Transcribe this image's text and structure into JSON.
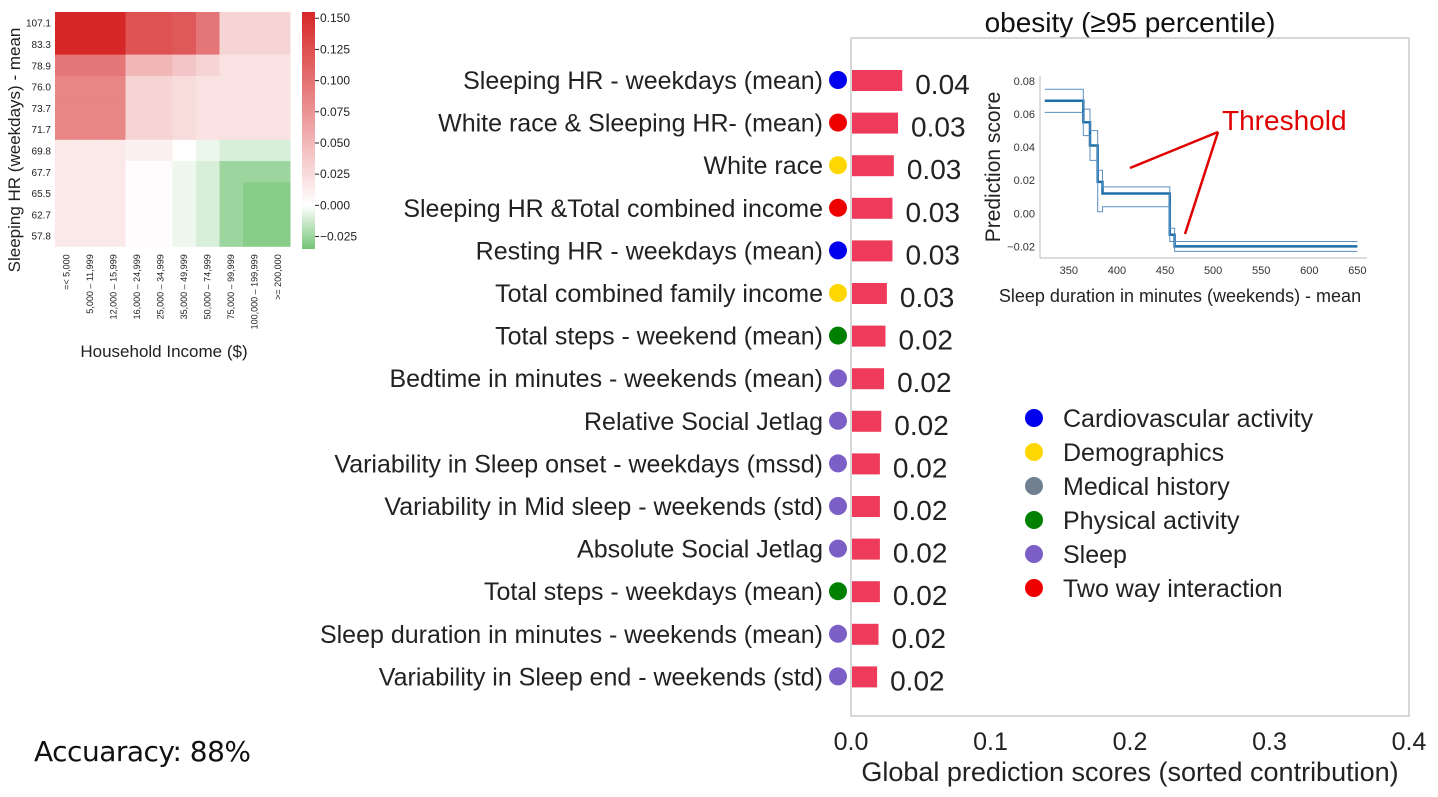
{
  "title": "obesity (≥95 percentile)",
  "accuracy_text": "Accuaracy: 88%",
  "colors": {
    "bar": "#ee3b5b",
    "Cardiovascular activity": "#0000ee",
    "Demographics": "#ffd700",
    "Medical history": "#708090",
    "Physical activity": "#008000",
    "Sleep": "#7b5ec6",
    "Two way interaction": "#ee0000"
  },
  "chart_data": [
    {
      "id": "main-bar",
      "type": "bar",
      "orientation": "horizontal",
      "xlabel": "Global prediction scores (sorted contribution)",
      "xlim": [
        0.0,
        0.4
      ],
      "xticks": [
        "0.0",
        "0.1",
        "0.2",
        "0.3",
        "0.4"
      ],
      "grid": false,
      "categories": [
        "Sleeping HR - weekdays (mean)",
        "White race  & Sleeping  HR- (mean)",
        "White race",
        "Sleeping HR &Total combined income",
        "Resting HR - weekdays (mean)",
        "Total combined family income",
        "Total steps - weekend (mean)",
        "Bedtime in minutes - weekends (mean)",
        "Relative Social Jetlag",
        "Variability in Sleep onset - weekdays (mssd)",
        "Variability in Mid sleep - weekends (std)",
        "Absolute Social Jetlag",
        "Total steps - weekdays (mean)",
        "Sleep duration in minutes - weekends (mean)",
        "Variability in Sleep end - weekends (std)"
      ],
      "values": [
        0.036,
        0.033,
        0.03,
        0.029,
        0.029,
        0.025,
        0.024,
        0.023,
        0.021,
        0.02,
        0.02,
        0.02,
        0.02,
        0.019,
        0.018
      ],
      "value_labels": [
        "0.04",
        "0.03",
        "0.03",
        "0.03",
        "0.03",
        "0.03",
        "0.02",
        "0.02",
        "0.02",
        "0.02",
        "0.02",
        "0.02",
        "0.02",
        "0.02",
        "0.02"
      ],
      "groups": [
        "Cardiovascular activity",
        "Two way interaction",
        "Demographics",
        "Two way interaction",
        "Cardiovascular activity",
        "Demographics",
        "Physical activity",
        "Sleep",
        "Sleep",
        "Sleep",
        "Sleep",
        "Sleep",
        "Physical activity",
        "Sleep",
        "Sleep"
      ],
      "legend": {
        "placement": "right",
        "entries": [
          "Cardiovascular activity",
          "Demographics",
          "Medical history",
          "Physical activity",
          "Sleep",
          "Two way interaction"
        ]
      }
    },
    {
      "id": "inset-step",
      "type": "line",
      "xlabel": "Sleep duration in minutes (weekends) - mean",
      "ylabel": "Prediction score",
      "xlim": [
        320,
        660
      ],
      "ylim": [
        -0.027,
        0.083
      ],
      "xticks": [
        "350",
        "400",
        "450",
        "500",
        "550",
        "600",
        "650"
      ],
      "yticks": [
        "0.08",
        "0.06",
        "0.04",
        "0.02",
        "0.00",
        "−0.02"
      ],
      "annotation": "Threshold",
      "series": [
        {
          "role": "mean",
          "x": [
            325,
            365,
            365,
            372,
            372,
            380,
            380,
            385,
            385,
            455,
            455,
            460,
            460,
            650
          ],
          "y": [
            0.068,
            0.068,
            0.055,
            0.055,
            0.041,
            0.041,
            0.019,
            0.019,
            0.012,
            0.012,
            -0.013,
            -0.013,
            -0.02,
            -0.02
          ]
        },
        {
          "role": "upper",
          "x": [
            325,
            365,
            365,
            372,
            372,
            380,
            380,
            385,
            385,
            455,
            455,
            460,
            460,
            650
          ],
          "y": [
            0.075,
            0.075,
            0.063,
            0.063,
            0.05,
            0.05,
            0.026,
            0.026,
            0.016,
            0.016,
            -0.009,
            -0.009,
            -0.017,
            -0.017
          ]
        },
        {
          "role": "lower",
          "x": [
            325,
            365,
            365,
            372,
            372,
            380,
            380,
            385,
            385,
            455,
            455,
            460,
            460,
            650
          ],
          "y": [
            0.061,
            0.061,
            0.047,
            0.047,
            0.032,
            0.032,
            0.001,
            0.001,
            0.004,
            0.004,
            -0.017,
            -0.017,
            -0.023,
            -0.023
          ]
        }
      ]
    },
    {
      "id": "heatmap",
      "type": "heatmap",
      "xlabel": "Household Income ($)",
      "ylabel": "Sleeping HR (weekdays) - mean",
      "x_categories": [
        "=< 5,000",
        "5,000 – 11,999",
        "12,000 – 15,999",
        "16,000 – 24,999",
        "25,000 – 34,999",
        "35,000 – 49,999",
        "50,000 – 74,999",
        "75,000 – 99,999",
        "100,000 – 199,999",
        ">= 200,000"
      ],
      "y_categories": [
        "107.1",
        "83.3",
        "78.9",
        "76.0",
        "73.7",
        "71.7",
        "69.8",
        "67.7",
        "65.5",
        "62.7",
        "57.8"
      ],
      "colorbar": {
        "ticks": [
          "0.150",
          "0.125",
          "0.100",
          "0.075",
          "0.050",
          "0.025",
          "0.000",
          "−0.025"
        ],
        "range": [
          -0.035,
          0.155
        ]
      },
      "values": [
        [
          0.15,
          0.15,
          0.15,
          0.12,
          0.12,
          0.115,
          0.095,
          0.03,
          0.03,
          0.03
        ],
        [
          0.15,
          0.15,
          0.15,
          0.12,
          0.12,
          0.115,
          0.095,
          0.03,
          0.03,
          0.03
        ],
        [
          0.095,
          0.095,
          0.095,
          0.05,
          0.05,
          0.04,
          0.03,
          0.02,
          0.02,
          0.02
        ],
        [
          0.085,
          0.085,
          0.085,
          0.03,
          0.03,
          0.025,
          0.02,
          0.02,
          0.02,
          0.02
        ],
        [
          0.085,
          0.085,
          0.085,
          0.03,
          0.03,
          0.025,
          0.02,
          0.02,
          0.02,
          0.02
        ],
        [
          0.085,
          0.085,
          0.085,
          0.03,
          0.03,
          0.025,
          0.02,
          0.02,
          0.02,
          0.02
        ],
        [
          0.015,
          0.015,
          0.015,
          0.01,
          0.01,
          0.0,
          -0.005,
          -0.01,
          -0.01,
          -0.01
        ],
        [
          0.015,
          0.015,
          0.015,
          0.002,
          0.002,
          -0.004,
          -0.01,
          -0.025,
          -0.025,
          -0.025
        ],
        [
          0.015,
          0.015,
          0.015,
          0.002,
          0.002,
          -0.004,
          -0.01,
          -0.025,
          -0.03,
          -0.03
        ],
        [
          0.015,
          0.015,
          0.015,
          0.002,
          0.002,
          -0.004,
          -0.01,
          -0.025,
          -0.03,
          -0.03
        ],
        [
          0.015,
          0.015,
          0.015,
          0.002,
          0.002,
          -0.004,
          -0.01,
          -0.025,
          -0.03,
          -0.03
        ]
      ]
    }
  ]
}
